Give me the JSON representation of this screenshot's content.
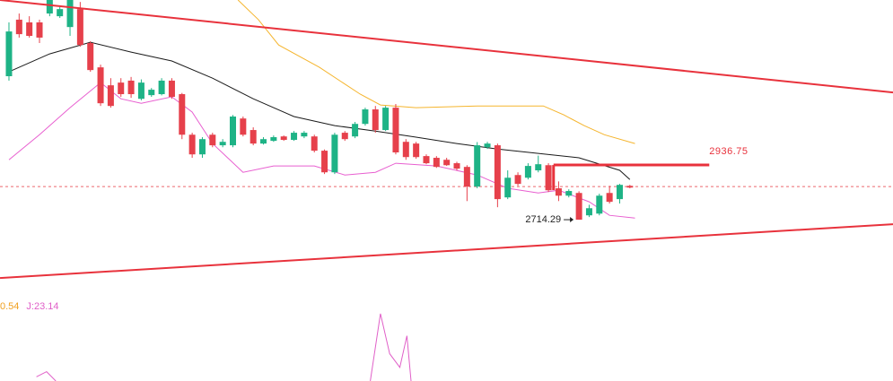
{
  "chart_data": {
    "type": "candlestick",
    "xlim": [
      -0.88,
      86.85
    ],
    "ylim": [
      2441,
      3608
    ],
    "up_color": "#1eb386",
    "down_color": "#e6404b",
    "candles": [
      [
        3298,
        3517,
        3280,
        3480
      ],
      [
        3528,
        3553,
        3455,
        3469
      ],
      [
        3517,
        3542,
        3455,
        3462
      ],
      [
        3517,
        3528,
        3433,
        3455
      ],
      [
        3553,
        3608,
        3542,
        3608
      ],
      [
        3542,
        3580,
        3535,
        3571
      ],
      [
        3498,
        3608,
        3462,
        3608
      ],
      [
        3571,
        3600,
        3418,
        3425
      ],
      [
        3433,
        3440,
        3316,
        3323
      ],
      [
        3334,
        3345,
        3177,
        3188
      ],
      [
        3261,
        3290,
        3170,
        3177
      ],
      [
        3272,
        3290,
        3214,
        3225
      ],
      [
        3280,
        3295,
        3210,
        3225
      ],
      [
        3206,
        3285,
        3200,
        3272
      ],
      [
        3221,
        3250,
        3214,
        3243
      ],
      [
        3225,
        3290,
        3220,
        3280
      ],
      [
        3280,
        3290,
        3206,
        3214
      ],
      [
        3225,
        3230,
        3042,
        3060
      ],
      [
        3060,
        3068,
        2966,
        2980
      ],
      [
        2980,
        3050,
        2966,
        3042
      ],
      [
        3060,
        3068,
        3009,
        3017
      ],
      [
        3017,
        3042,
        3009,
        3031
      ],
      [
        3017,
        3140,
        3009,
        3134
      ],
      [
        3126,
        3134,
        3053,
        3060
      ],
      [
        3079,
        3090,
        3017,
        3024
      ],
      [
        3024,
        3050,
        3020,
        3042
      ],
      [
        3035,
        3057,
        3031,
        3050
      ],
      [
        3053,
        3057,
        3035,
        3039
      ],
      [
        3039,
        3075,
        3035,
        3068
      ],
      [
        3053,
        3075,
        3046,
        3068
      ],
      [
        3053,
        3060,
        2988,
        2995
      ],
      [
        2995,
        3000,
        2900,
        2907
      ],
      [
        2907,
        3068,
        2900,
        3060
      ],
      [
        3068,
        3075,
        3035,
        3042
      ],
      [
        3053,
        3112,
        3046,
        3104
      ],
      [
        3104,
        3170,
        3097,
        3163
      ],
      [
        3163,
        3177,
        3068,
        3079
      ],
      [
        3079,
        3177,
        3075,
        3170
      ],
      [
        3170,
        3185,
        2980,
        2988
      ],
      [
        3031,
        3042,
        2958,
        2969
      ],
      [
        3024,
        3031,
        2962,
        2969
      ],
      [
        2973,
        2980,
        2940,
        2944
      ],
      [
        2966,
        2973,
        2925,
        2929
      ],
      [
        2958,
        2966,
        2933,
        2936
      ],
      [
        2944,
        2950,
        2915,
        2922
      ],
      [
        2929,
        2936,
        2790,
        2849
      ],
      [
        2849,
        3030,
        2842,
        3017
      ],
      [
        3009,
        3031,
        3002,
        3024
      ],
      [
        3017,
        3024,
        2765,
        2798
      ],
      [
        2805,
        2915,
        2798,
        2885
      ],
      [
        2896,
        2907,
        2852,
        2860
      ],
      [
        2885,
        2944,
        2878,
        2933
      ],
      [
        2915,
        2975,
        2907,
        2940
      ],
      [
        2936,
        2944,
        2827,
        2834
      ],
      [
        2842,
        2870,
        2790,
        2812
      ],
      [
        2812,
        2838,
        2805,
        2831
      ],
      [
        2823,
        2830,
        2714.29,
        2714.29
      ],
      [
        2732,
        2775,
        2725,
        2761
      ],
      [
        2739,
        2820,
        2732,
        2812
      ],
      [
        2823,
        2852,
        2780,
        2787
      ],
      [
        2798,
        2860,
        2780,
        2856
      ],
      [
        2852,
        2856,
        2842,
        2845
      ]
    ],
    "lines": [
      {
        "color": "#1a1a1a",
        "x": [
          0,
          4,
          8,
          12,
          16,
          20,
          24,
          28,
          32,
          36,
          40,
          44,
          48,
          52,
          56,
          60,
          61
        ],
        "values": [
          3316,
          3389,
          3436,
          3396,
          3360,
          3290,
          3206,
          3134,
          3097,
          3075,
          3050,
          3024,
          3002,
          2984,
          2966,
          2915,
          2878
        ]
      },
      {
        "color": "#f5b52e",
        "x": [
          22.5,
          24.5,
          26.5,
          30.5,
          34.5,
          36.5,
          40,
          46,
          52.5,
          54.5,
          56.5,
          58.5,
          61.5
        ],
        "values": [
          3608,
          3528,
          3425,
          3334,
          3225,
          3181,
          3170,
          3177,
          3177,
          3141,
          3097,
          3060,
          3024
        ]
      },
      {
        "color": "#e85fd0",
        "x": [
          0,
          3,
          6,
          9,
          11,
          13,
          16,
          18,
          20,
          23,
          26,
          30,
          33,
          36,
          38,
          42,
          46,
          49,
          52,
          54,
          57,
          59,
          61.5
        ],
        "values": [
          2958,
          3060,
          3170,
          3272,
          3206,
          3188,
          3214,
          3152,
          3024,
          2907,
          2933,
          2933,
          2896,
          2907,
          2944,
          2933,
          2896,
          2842,
          2823,
          2834,
          2787,
          2732,
          2721
        ]
      }
    ],
    "trendlines": [
      {
        "color": "#e8323c",
        "x": [
          -0.88,
          86.85
        ],
        "values": [
          3608,
          3232
        ]
      },
      {
        "color": "#e8323c",
        "x": [
          -0.88,
          86.85
        ],
        "values": [
          2477,
          2696
        ]
      }
    ],
    "level": {
      "value": 2936.75,
      "color": "#e8323c",
      "x": [
        53.5,
        68.8
      ]
    },
    "price_line": {
      "value": 2849,
      "color": "#e8404b"
    },
    "low_label": 2714.29,
    "indicator": {
      "ylim": [
        0,
        100
      ],
      "labels": [
        {
          "text": "0.54",
          "color": "#f0a020"
        },
        {
          "text": "J:23.14",
          "color": "#e060c8"
        }
      ],
      "line": {
        "color": "#e060c8",
        "x": [
          2.7,
          3.7,
          4.6,
          20,
          35.5,
          36.5,
          37.4,
          38.4,
          39.1,
          39.5
        ],
        "values": [
          5,
          11,
          0,
          null,
          0,
          79,
          32,
          16,
          53,
          0
        ]
      }
    }
  }
}
